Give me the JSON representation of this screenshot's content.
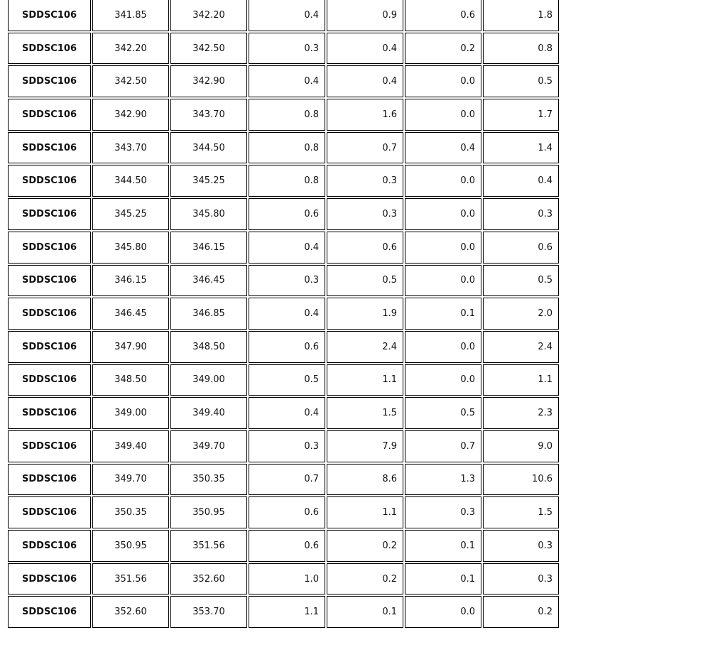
{
  "table": {
    "rows": [
      [
        "SDDSC106",
        "341.85",
        "342.20",
        "0.4",
        "0.9",
        "0.6",
        "1.8"
      ],
      [
        "SDDSC106",
        "342.20",
        "342.50",
        "0.3",
        "0.4",
        "0.2",
        "0.8"
      ],
      [
        "SDDSC106",
        "342.50",
        "342.90",
        "0.4",
        "0.4",
        "0.0",
        "0.5"
      ],
      [
        "SDDSC106",
        "342.90",
        "343.70",
        "0.8",
        "1.6",
        "0.0",
        "1.7"
      ],
      [
        "SDDSC106",
        "343.70",
        "344.50",
        "0.8",
        "0.7",
        "0.4",
        "1.4"
      ],
      [
        "SDDSC106",
        "344.50",
        "345.25",
        "0.8",
        "0.3",
        "0.0",
        "0.4"
      ],
      [
        "SDDSC106",
        "345.25",
        "345.80",
        "0.6",
        "0.3",
        "0.0",
        "0.3"
      ],
      [
        "SDDSC106",
        "345.80",
        "346.15",
        "0.4",
        "0.6",
        "0.0",
        "0.6"
      ],
      [
        "SDDSC106",
        "346.15",
        "346.45",
        "0.3",
        "0.5",
        "0.0",
        "0.5"
      ],
      [
        "SDDSC106",
        "346.45",
        "346.85",
        "0.4",
        "1.9",
        "0.1",
        "2.0"
      ],
      [
        "SDDSC106",
        "347.90",
        "348.50",
        "0.6",
        "2.4",
        "0.0",
        "2.4"
      ],
      [
        "SDDSC106",
        "348.50",
        "349.00",
        "0.5",
        "1.1",
        "0.0",
        "1.1"
      ],
      [
        "SDDSC106",
        "349.00",
        "349.40",
        "0.4",
        "1.5",
        "0.5",
        "2.3"
      ],
      [
        "SDDSC106",
        "349.40",
        "349.70",
        "0.3",
        "7.9",
        "0.7",
        "9.0"
      ],
      [
        "SDDSC106",
        "349.70",
        "350.35",
        "0.7",
        "8.6",
        "1.3",
        "10.6"
      ],
      [
        "SDDSC106",
        "350.35",
        "350.95",
        "0.6",
        "1.1",
        "0.3",
        "1.5"
      ],
      [
        "SDDSC106",
        "350.95",
        "351.56",
        "0.6",
        "0.2",
        "0.1",
        "0.3"
      ],
      [
        "SDDSC106",
        "351.56",
        "352.60",
        "1.0",
        "0.2",
        "0.1",
        "0.3"
      ],
      [
        "SDDSC106",
        "352.60",
        "353.70",
        "1.1",
        "0.1",
        "0.0",
        "0.2"
      ]
    ]
  }
}
